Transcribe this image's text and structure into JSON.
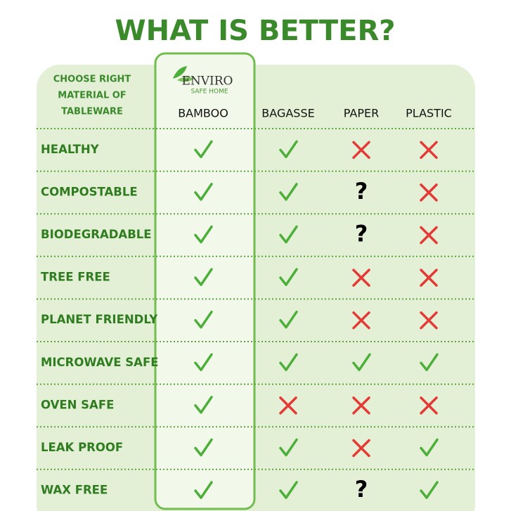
{
  "title": "WHAT IS BETTER?",
  "corner_label": [
    "CHOOSE RIGHT",
    "MATERIAL OF",
    "TABLEWARE"
  ],
  "logo": {
    "name": "ENVIRO",
    "tagline": "SAFE HOME"
  },
  "columns": [
    "BAMBOO",
    "BAGASSE",
    "PAPER",
    "PLASTIC"
  ],
  "rows": [
    {
      "label": "HEALTHY",
      "cells": [
        true,
        true,
        false,
        false
      ]
    },
    {
      "label": "COMPOSTABLE",
      "cells": [
        true,
        true,
        "?",
        false
      ]
    },
    {
      "label": "BIODEGRADABLE",
      "cells": [
        true,
        true,
        "?",
        false
      ]
    },
    {
      "label": "TREE FREE",
      "cells": [
        true,
        true,
        false,
        false
      ]
    },
    {
      "label": "PLANET FRIENDLY",
      "cells": [
        true,
        true,
        false,
        false
      ]
    },
    {
      "label": "MICROWAVE SAFE",
      "cells": [
        true,
        true,
        true,
        true
      ]
    },
    {
      "label": "OVEN SAFE",
      "cells": [
        true,
        false,
        false,
        false
      ]
    },
    {
      "label": "LEAK PROOF",
      "cells": [
        true,
        true,
        false,
        true
      ]
    },
    {
      "label": "WAX FREE",
      "cells": [
        true,
        true,
        "?",
        true
      ]
    }
  ]
}
